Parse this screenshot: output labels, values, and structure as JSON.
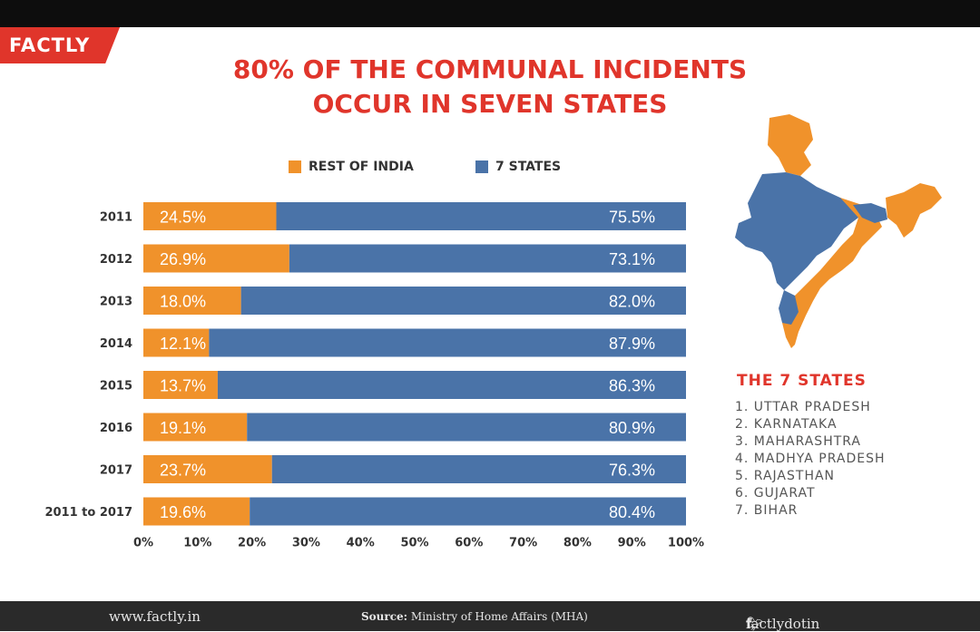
{
  "brand": {
    "logo_text": "FACTLY"
  },
  "title_lines": [
    "80% OF THE COMMUNAL INCIDENTS",
    "OCCUR IN SEVEN STATES"
  ],
  "colors": {
    "rest_of_india": "#f0922b",
    "seven_states": "#4a73a8",
    "accent": "#e0352b"
  },
  "chart_data": {
    "type": "bar",
    "orientation": "horizontal",
    "stacked": true,
    "categories": [
      "2011",
      "2012",
      "2013",
      "2014",
      "2015",
      "2016",
      "2017",
      "2011 to 2017"
    ],
    "series": [
      {
        "name": "REST OF INDIA",
        "values": [
          24.5,
          26.9,
          18.0,
          12.1,
          13.7,
          19.1,
          23.7,
          19.6
        ],
        "labels": [
          "24.5%",
          "26.9%",
          "18.0%",
          "12.1%",
          "13.7%",
          "19.1%",
          "23.7%",
          "19.6%"
        ]
      },
      {
        "name": "7 STATES",
        "values": [
          75.5,
          73.1,
          82.0,
          87.9,
          86.3,
          80.9,
          76.3,
          80.4
        ],
        "labels": [
          "75.5%",
          "73.1%",
          "82.0%",
          "87.9%",
          "86.3%",
          "80.9%",
          "76.3%",
          "80.4%"
        ]
      }
    ],
    "xlim": [
      0,
      100
    ],
    "x_ticks": [
      "0%",
      "10%",
      "20%",
      "30%",
      "40%",
      "50%",
      "60%",
      "70%",
      "80%",
      "90%",
      "100%"
    ],
    "legend_position": "top-center"
  },
  "states_panel": {
    "title": "THE 7 STATES",
    "items": [
      "1. UTTAR PRADESH",
      "2. KARNATAKA",
      "3. MAHARASHTRA",
      "4. MADHYA PRADESH",
      "5. RAJASTHAN",
      "6. GUJARAT",
      "7. BIHAR"
    ]
  },
  "footer": {
    "website": "www.factly.in",
    "source_label": "Source:",
    "source_text": "Ministry of Home Affairs (MHA)",
    "social_handle": "factlydotin",
    "social_icons": [
      "twitter-icon",
      "facebook-icon"
    ]
  }
}
